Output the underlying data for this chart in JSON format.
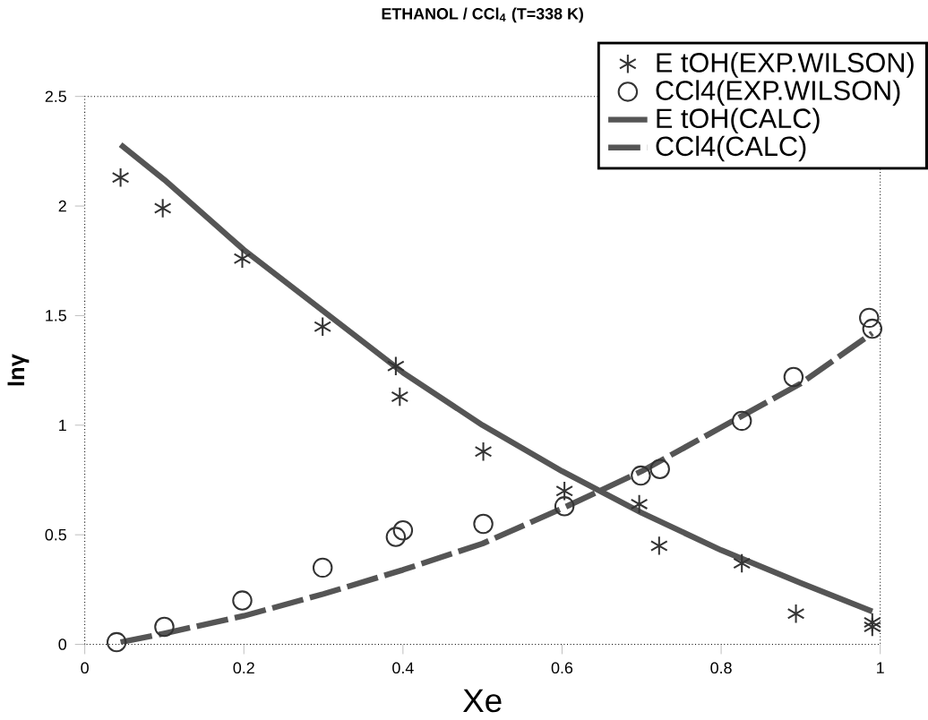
{
  "chart_data": {
    "type": "scatter",
    "title": "ETHANOL / CCl$_{4}$ (T=338 K)",
    "xlabel": "Xe",
    "ylabel": "lnγ",
    "xlim": [
      0,
      1
    ],
    "ylim": [
      0,
      2.5
    ],
    "xticks": [
      0,
      0.2,
      0.4,
      0.6,
      0.8,
      1
    ],
    "yticks": [
      0,
      0.5,
      1,
      1.5,
      2,
      2.5
    ],
    "grid": false,
    "legend": "top right",
    "series": [
      {
        "name": "E tOH(EXP.WILSON)",
        "marker": "cross",
        "color": "#333333",
        "x": [
          0.045,
          0.098,
          0.198,
          0.299,
          0.391,
          0.396,
          0.501,
          0.603,
          0.697,
          0.722,
          0.826,
          0.894,
          0.99,
          0.99
        ],
        "values": [
          2.13,
          1.99,
          1.76,
          1.45,
          1.27,
          1.13,
          0.88,
          0.7,
          0.64,
          0.45,
          0.37,
          0.14,
          0.1,
          0.08
        ]
      },
      {
        "name": "CCl4(EXP.WILSON)",
        "marker": "circle",
        "color": "#333333",
        "x": [
          0.04,
          0.1,
          0.198,
          0.299,
          0.391,
          0.4,
          0.501,
          0.603,
          0.699,
          0.723,
          0.826,
          0.891,
          0.986,
          0.99
        ],
        "values": [
          0.01,
          0.08,
          0.2,
          0.35,
          0.49,
          0.52,
          0.55,
          0.63,
          0.77,
          0.8,
          1.02,
          1.22,
          1.49,
          1.44
        ]
      },
      {
        "name": "E tOH(CALC)",
        "type": "line",
        "line_style": "solid",
        "color": "#555555",
        "x": [
          0.045,
          0.1,
          0.2,
          0.3,
          0.4,
          0.5,
          0.6,
          0.7,
          0.8,
          0.9,
          0.99
        ],
        "values": [
          2.28,
          2.12,
          1.8,
          1.52,
          1.24,
          1.0,
          0.79,
          0.6,
          0.43,
          0.28,
          0.15
        ]
      },
      {
        "name": "CCl4(CALC)",
        "type": "line",
        "line_style": "dashed",
        "color": "#555555",
        "x": [
          0.045,
          0.1,
          0.2,
          0.3,
          0.4,
          0.5,
          0.6,
          0.7,
          0.8,
          0.9,
          0.99
        ],
        "values": [
          0.01,
          0.05,
          0.13,
          0.23,
          0.34,
          0.46,
          0.62,
          0.79,
          0.99,
          1.19,
          1.42
        ]
      }
    ]
  }
}
